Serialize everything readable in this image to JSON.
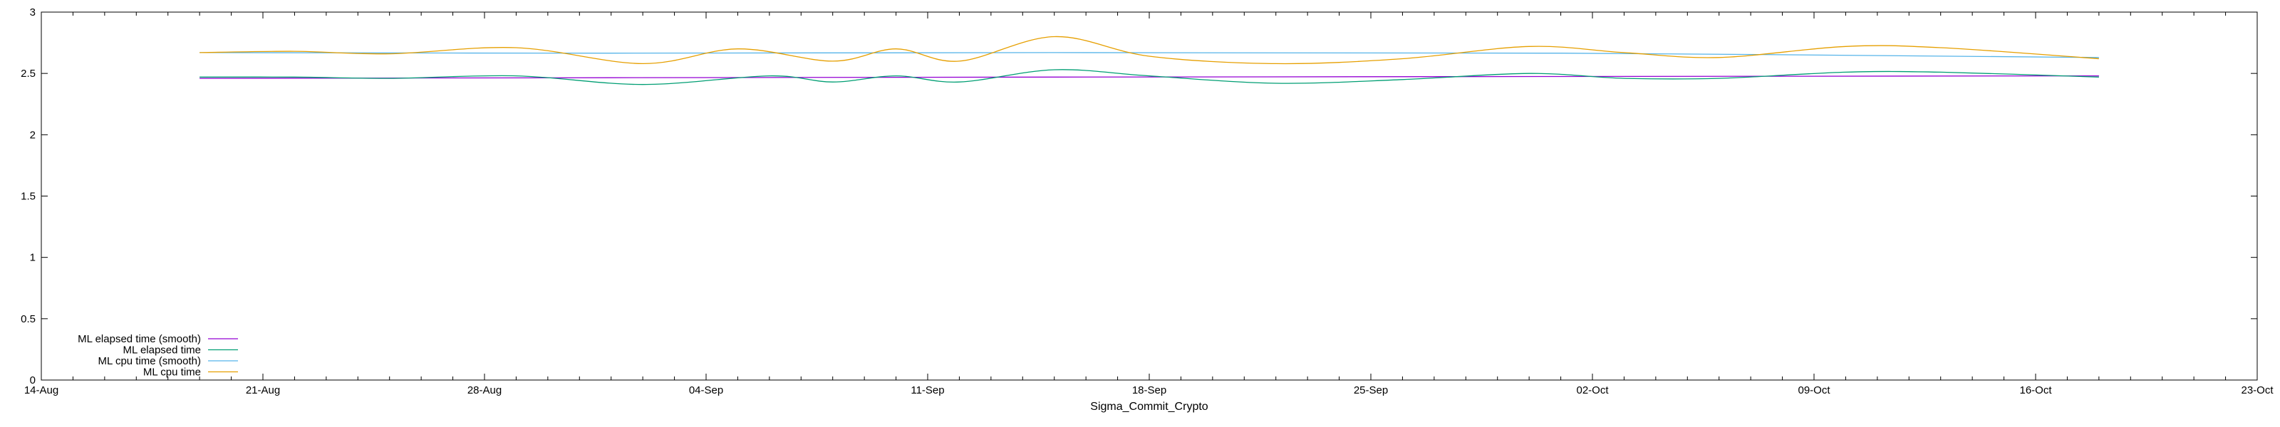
{
  "chart_data": {
    "type": "line",
    "title": "",
    "xlabel": "Sigma_Commit_Crypto",
    "ylabel": "",
    "xlim": [
      "2023-08-14",
      "2023-10-23"
    ],
    "ylim": [
      0,
      3
    ],
    "x_ticks": [
      "14-Aug",
      "21-Aug",
      "28-Aug",
      "04-Sep",
      "11-Sep",
      "18-Sep",
      "25-Sep",
      "02-Oct",
      "09-Oct",
      "16-Oct",
      "23-Oct"
    ],
    "y_ticks": [
      "0",
      "0.5",
      "1",
      "1.5",
      "2",
      "2.5",
      "3"
    ],
    "grid": false,
    "legend": "bottom-left",
    "series": [
      {
        "name": "ML elapsed time (smooth)",
        "color": "#9400d3",
        "x": [
          "2023-08-19",
          "2023-09-01",
          "2023-09-15",
          "2023-10-01",
          "2023-10-18"
        ],
        "values": [
          2.46,
          2.465,
          2.47,
          2.475,
          2.48
        ]
      },
      {
        "name": "ML elapsed time",
        "color": "#009e73",
        "x": [
          "2023-08-19",
          "2023-08-22",
          "2023-08-25",
          "2023-08-29",
          "2023-09-02",
          "2023-09-06",
          "2023-09-08",
          "2023-09-10",
          "2023-09-12",
          "2023-09-15",
          "2023-09-18",
          "2023-09-22",
          "2023-09-26",
          "2023-09-30",
          "2023-10-03",
          "2023-10-06",
          "2023-10-10",
          "2023-10-13",
          "2023-10-18"
        ],
        "values": [
          2.47,
          2.47,
          2.46,
          2.48,
          2.41,
          2.48,
          2.43,
          2.48,
          2.43,
          2.53,
          2.48,
          2.42,
          2.45,
          2.5,
          2.46,
          2.46,
          2.51,
          2.51,
          2.47
        ]
      },
      {
        "name": "ML cpu time (smooth)",
        "color": "#56b4e9",
        "x": [
          "2023-08-19",
          "2023-09-01",
          "2023-09-15",
          "2023-10-01",
          "2023-10-18"
        ],
        "values": [
          2.67,
          2.665,
          2.67,
          2.665,
          2.63
        ]
      },
      {
        "name": "ML cpu time",
        "color": "#e69f00",
        "x": [
          "2023-08-19",
          "2023-08-22",
          "2023-08-25",
          "2023-08-29",
          "2023-09-02",
          "2023-09-05",
          "2023-09-08",
          "2023-09-10",
          "2023-09-12",
          "2023-09-15",
          "2023-09-18",
          "2023-09-22",
          "2023-09-26",
          "2023-09-30",
          "2023-10-03",
          "2023-10-06",
          "2023-10-10",
          "2023-10-13",
          "2023-10-18"
        ],
        "values": [
          2.67,
          2.68,
          2.66,
          2.71,
          2.58,
          2.7,
          2.6,
          2.7,
          2.6,
          2.8,
          2.64,
          2.58,
          2.62,
          2.72,
          2.67,
          2.63,
          2.72,
          2.71,
          2.62
        ]
      }
    ]
  }
}
